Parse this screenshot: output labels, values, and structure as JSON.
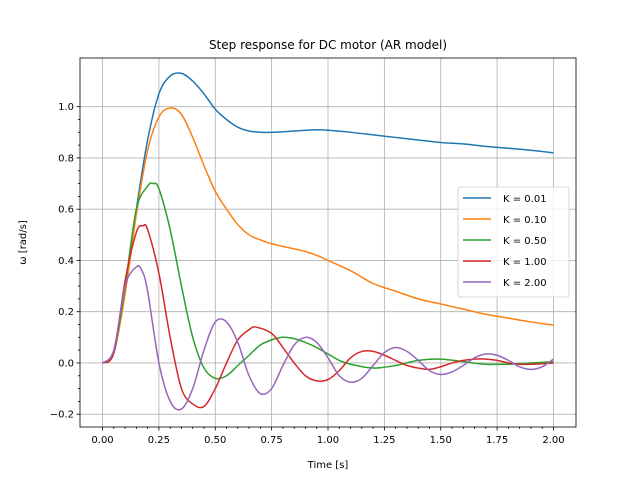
{
  "chart_data": {
    "type": "line",
    "title": "Step response for DC motor (AR model)",
    "xlabel": "Time [s]",
    "ylabel": "ω [rad/s]",
    "xlim": [
      -0.1,
      2.1
    ],
    "ylim": [
      -0.25,
      1.19
    ],
    "xticks": [
      0.0,
      0.25,
      0.5,
      0.75,
      1.0,
      1.25,
      1.5,
      1.75,
      2.0
    ],
    "xtick_labels": [
      "0.00",
      "0.25",
      "0.50",
      "0.75",
      "1.00",
      "1.25",
      "1.50",
      "1.75",
      "2.00"
    ],
    "yticks": [
      -0.2,
      0.0,
      0.2,
      0.4,
      0.6,
      0.8,
      1.0
    ],
    "ytick_labels": [
      "−0.2",
      "0.0",
      "0.2",
      "0.4",
      "0.6",
      "0.8",
      "1.0"
    ],
    "grid": true,
    "legend_position": "center-right",
    "series": [
      {
        "name": "K = 0.01",
        "color": "#1f77b4",
        "x": [
          0.0,
          0.05,
          0.1,
          0.15,
          0.2,
          0.25,
          0.3,
          0.35,
          0.4,
          0.45,
          0.5,
          0.55,
          0.6,
          0.65,
          0.7,
          0.75,
          0.8,
          0.85,
          0.9,
          0.95,
          1.0,
          1.1,
          1.2,
          1.3,
          1.4,
          1.5,
          1.6,
          1.7,
          1.8,
          1.9,
          2.0
        ],
        "y": [
          0.0,
          0.04,
          0.28,
          0.6,
          0.87,
          1.05,
          1.12,
          1.13,
          1.1,
          1.05,
          0.99,
          0.95,
          0.92,
          0.905,
          0.9,
          0.9,
          0.902,
          0.905,
          0.908,
          0.91,
          0.908,
          0.9,
          0.89,
          0.88,
          0.87,
          0.86,
          0.855,
          0.845,
          0.838,
          0.83,
          0.82
        ]
      },
      {
        "name": "K = 0.10",
        "color": "#ff7f0e",
        "x": [
          0.0,
          0.05,
          0.1,
          0.15,
          0.2,
          0.25,
          0.3,
          0.35,
          0.4,
          0.45,
          0.5,
          0.55,
          0.6,
          0.65,
          0.7,
          0.75,
          0.8,
          0.85,
          0.9,
          0.95,
          1.0,
          1.1,
          1.2,
          1.3,
          1.4,
          1.5,
          1.6,
          1.7,
          1.8,
          1.9,
          2.0
        ],
        "y": [
          0.0,
          0.04,
          0.27,
          0.58,
          0.83,
          0.96,
          0.995,
          0.97,
          0.88,
          0.77,
          0.67,
          0.6,
          0.54,
          0.5,
          0.48,
          0.465,
          0.455,
          0.445,
          0.435,
          0.42,
          0.4,
          0.36,
          0.31,
          0.28,
          0.25,
          0.23,
          0.21,
          0.19,
          0.175,
          0.16,
          0.148
        ]
      },
      {
        "name": "K = 0.50",
        "color": "#2ca02c",
        "x": [
          0.0,
          0.05,
          0.1,
          0.15,
          0.2,
          0.225,
          0.25,
          0.3,
          0.35,
          0.4,
          0.45,
          0.5,
          0.55,
          0.6,
          0.65,
          0.7,
          0.75,
          0.8,
          0.85,
          0.9,
          0.95,
          1.0,
          1.05,
          1.1,
          1.2,
          1.3,
          1.4,
          1.5,
          1.6,
          1.7,
          1.8,
          1.9,
          2.0
        ],
        "y": [
          0.0,
          0.04,
          0.3,
          0.6,
          0.69,
          0.7,
          0.68,
          0.52,
          0.3,
          0.1,
          -0.02,
          -0.06,
          -0.05,
          -0.01,
          0.03,
          0.07,
          0.09,
          0.1,
          0.095,
          0.08,
          0.06,
          0.035,
          0.01,
          -0.005,
          -0.02,
          -0.01,
          0.01,
          0.015,
          0.005,
          -0.005,
          -0.005,
          0.0,
          0.005
        ]
      },
      {
        "name": "K = 1.00",
        "color": "#d62728",
        "x": [
          0.0,
          0.05,
          0.1,
          0.15,
          0.18,
          0.2,
          0.25,
          0.3,
          0.35,
          0.4,
          0.45,
          0.5,
          0.55,
          0.6,
          0.65,
          0.68,
          0.75,
          0.8,
          0.85,
          0.9,
          0.95,
          1.0,
          1.05,
          1.1,
          1.15,
          1.2,
          1.25,
          1.3,
          1.35,
          1.4,
          1.45,
          1.5,
          1.55,
          1.6,
          1.65,
          1.7,
          1.75,
          1.8,
          1.85,
          1.9,
          1.95,
          2.0
        ],
        "y": [
          0.0,
          0.04,
          0.32,
          0.51,
          0.535,
          0.52,
          0.35,
          0.1,
          -0.1,
          -0.16,
          -0.17,
          -0.1,
          0.0,
          0.09,
          0.13,
          0.14,
          0.115,
          0.06,
          0.0,
          -0.05,
          -0.07,
          -0.065,
          -0.03,
          0.02,
          0.045,
          0.045,
          0.03,
          0.01,
          -0.01,
          -0.02,
          -0.025,
          -0.015,
          0.0,
          0.01,
          0.015,
          0.015,
          0.01,
          0.0,
          -0.005,
          -0.005,
          -0.003,
          0.0
        ]
      },
      {
        "name": "K = 2.00",
        "color": "#9467bd",
        "x": [
          0.0,
          0.05,
          0.1,
          0.15,
          0.175,
          0.2,
          0.25,
          0.3,
          0.35,
          0.4,
          0.45,
          0.5,
          0.55,
          0.6,
          0.65,
          0.7,
          0.75,
          0.8,
          0.85,
          0.9,
          0.95,
          1.0,
          1.05,
          1.1,
          1.15,
          1.2,
          1.25,
          1.3,
          1.35,
          1.4,
          1.45,
          1.5,
          1.55,
          1.6,
          1.65,
          1.7,
          1.75,
          1.8,
          1.85,
          1.9,
          1.95,
          2.0
        ],
        "y": [
          0.0,
          0.05,
          0.3,
          0.375,
          0.36,
          0.28,
          0.0,
          -0.15,
          -0.18,
          -0.1,
          0.05,
          0.16,
          0.16,
          0.08,
          -0.05,
          -0.12,
          -0.1,
          -0.01,
          0.07,
          0.1,
          0.08,
          0.02,
          -0.05,
          -0.075,
          -0.06,
          -0.01,
          0.04,
          0.06,
          0.045,
          0.01,
          -0.03,
          -0.045,
          -0.035,
          -0.01,
          0.02,
          0.035,
          0.03,
          0.01,
          -0.015,
          -0.025,
          -0.015,
          0.015
        ]
      }
    ]
  }
}
